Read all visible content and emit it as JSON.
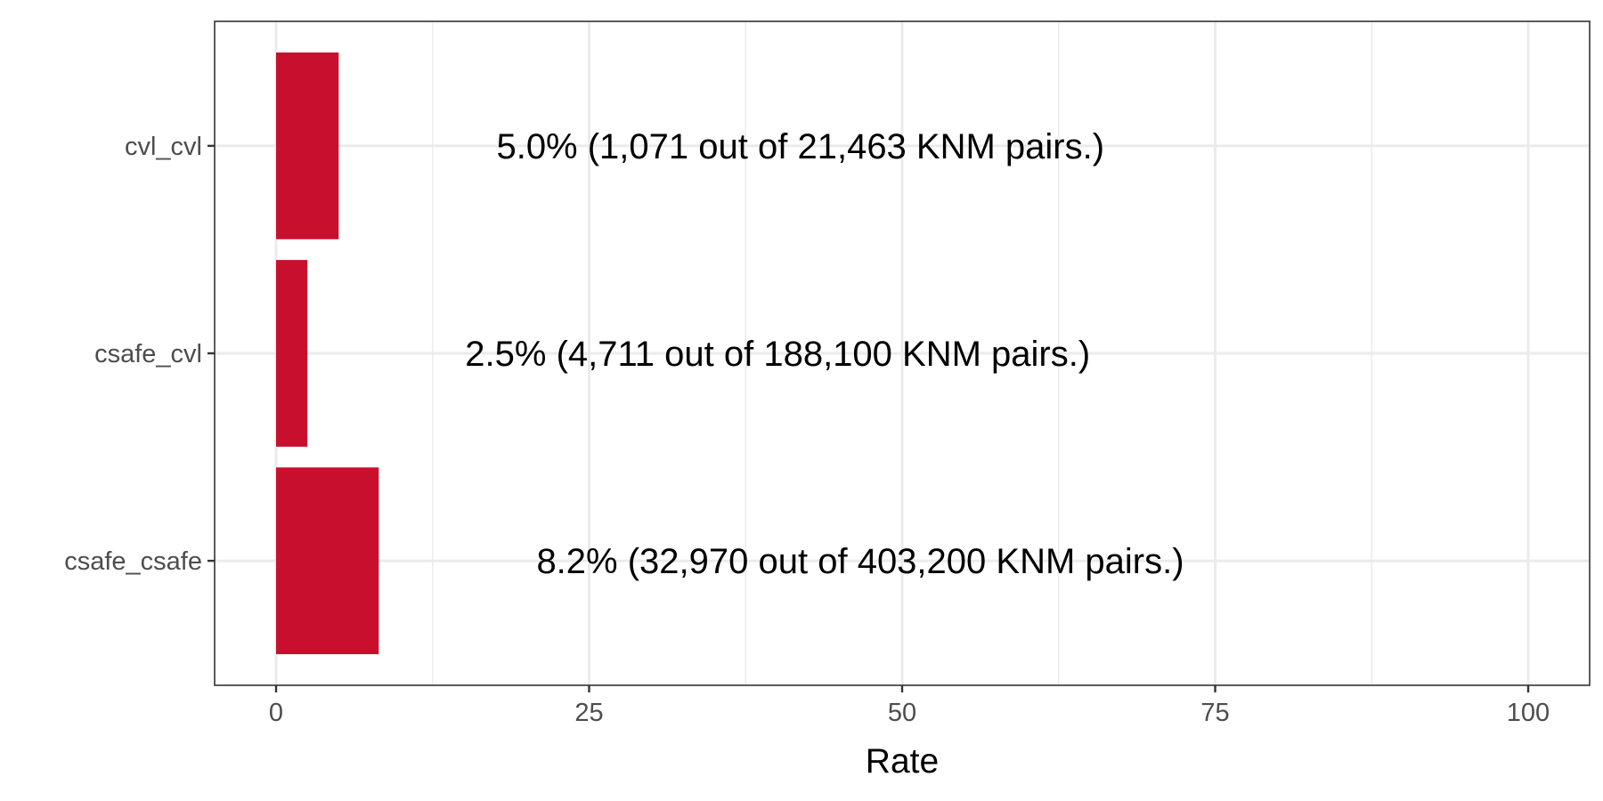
{
  "chart_data": {
    "type": "bar",
    "orientation": "horizontal",
    "categories": [
      "cvl_cvl",
      "csafe_cvl",
      "csafe_csafe"
    ],
    "values": [
      5.0,
      2.5,
      8.2
    ],
    "data_labels": [
      "5.0% (1,071 out of 21,463 KNM pairs.)",
      "2.5% (4,711 out of 188,100 KNM pairs.)",
      "8.2% (32,970 out of 403,200 KNM pairs.)"
    ],
    "xlabel": "Rate",
    "ylabel": "",
    "xlim": [
      0,
      100
    ],
    "x_ticks": [
      0,
      25,
      50,
      75,
      100
    ],
    "grid": true,
    "bar_color": "#C8102E"
  }
}
